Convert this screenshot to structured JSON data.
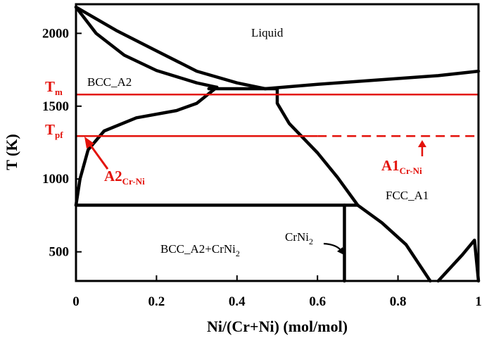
{
  "chart_data": {
    "type": "phase-diagram",
    "xlabel": "Ni/(Cr+Ni) (mol/mol)",
    "ylabel": "T (K)",
    "xlim": [
      0,
      1
    ],
    "ylim": [
      300,
      2200
    ],
    "x_ticks": [
      "0",
      "0.2",
      "0.4",
      "0.6",
      "0.8",
      "1"
    ],
    "y_ticks": [
      "500",
      "1000",
      "1500",
      "2000"
    ],
    "x_tick_values": [
      0,
      0.2,
      0.4,
      0.6,
      0.8,
      1.0
    ],
    "y_tick_values": [
      500,
      1000,
      1500,
      2000
    ],
    "regions": {
      "liquid": "Liquid",
      "bcc": "BCC_A2",
      "fcc": "FCC_A1",
      "bcc_crni2_main": "BCC_A2+CrNi",
      "bcc_crni2_sub": "2",
      "crni2_main": "CrNi",
      "crni2_sub": "2"
    },
    "annotations": {
      "tm_main": "T",
      "tm_sub": "m",
      "tpf_main": "T",
      "tpf_sub": "pf",
      "a2_main": "A2",
      "a2_sub": "Cr-Ni",
      "a1_main": "A1",
      "a1_sub": "Cr-Ni"
    },
    "reference_lines": [
      {
        "name": "Tm",
        "y": 1580,
        "style": "solid"
      },
      {
        "name": "Tpf",
        "y": 1295,
        "style": "solid-then-dashed",
        "dash_start_x": 0.6
      }
    ],
    "phase_boundaries": [
      {
        "name": "bcc-liquidus",
        "points": [
          [
            0,
            2180
          ],
          [
            0.1,
            2020
          ],
          [
            0.2,
            1880
          ],
          [
            0.3,
            1740
          ],
          [
            0.4,
            1660
          ],
          [
            0.47,
            1620
          ]
        ]
      },
      {
        "name": "bcc-solidus",
        "points": [
          [
            0,
            2180
          ],
          [
            0.05,
            2000
          ],
          [
            0.12,
            1850
          ],
          [
            0.2,
            1745
          ],
          [
            0.3,
            1660
          ],
          [
            0.35,
            1630
          ]
        ]
      },
      {
        "name": "bcc-liquid-fcc-eutectic",
        "points": [
          [
            0.33,
            1620
          ],
          [
            0.5,
            1620
          ]
        ]
      },
      {
        "name": "fcc-liquidus",
        "points": [
          [
            0.47,
            1620
          ],
          [
            0.6,
            1650
          ],
          [
            0.7,
            1670
          ],
          [
            0.8,
            1690
          ],
          [
            0.9,
            1710
          ],
          [
            1.0,
            1740
          ]
        ]
      },
      {
        "name": "bcc-solvus",
        "points": [
          [
            0,
            820
          ],
          [
            0.01,
            1000
          ],
          [
            0.03,
            1200
          ],
          [
            0.07,
            1330
          ],
          [
            0.15,
            1420
          ],
          [
            0.25,
            1470
          ],
          [
            0.3,
            1520
          ],
          [
            0.35,
            1630
          ]
        ]
      },
      {
        "name": "fcc-solvus",
        "points": [
          [
            0.5,
            1620
          ],
          [
            0.5,
            1520
          ],
          [
            0.53,
            1380
          ],
          [
            0.6,
            1180
          ],
          [
            0.65,
            1010
          ],
          [
            0.7,
            820
          ]
        ]
      },
      {
        "name": "eutectoid",
        "points": [
          [
            0,
            820
          ],
          [
            0.7,
            820
          ]
        ]
      },
      {
        "name": "crni2-line",
        "points": [
          [
            0.667,
            820
          ],
          [
            0.667,
            300
          ]
        ]
      },
      {
        "name": "fcc-lower-left",
        "points": [
          [
            0.7,
            820
          ],
          [
            0.76,
            700
          ],
          [
            0.82,
            550
          ],
          [
            0.88,
            300
          ]
        ]
      },
      {
        "name": "fcc-lower-right",
        "points": [
          [
            0.9,
            300
          ],
          [
            0.96,
            480
          ],
          [
            0.99,
            580
          ],
          [
            1.0,
            300
          ]
        ]
      }
    ],
    "colors": {
      "lines": "#000000",
      "reference": "#e3120b"
    },
    "grid": false,
    "legend": "none"
  }
}
